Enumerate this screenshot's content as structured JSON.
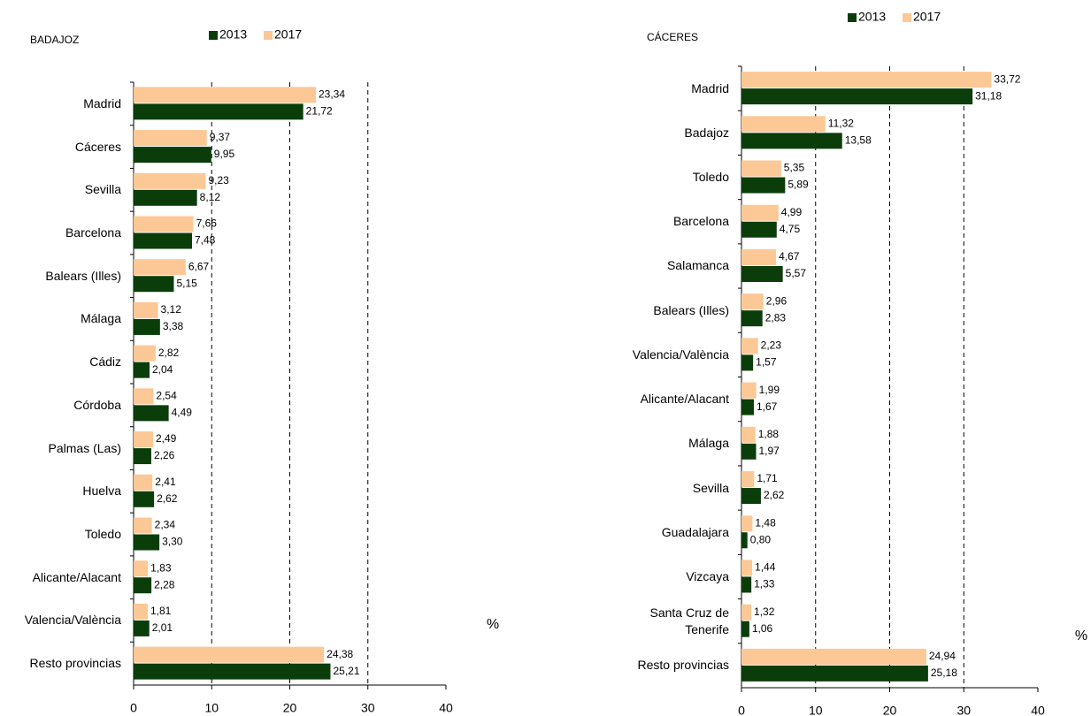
{
  "chart_data": [
    {
      "type": "bar",
      "orientation": "horizontal",
      "title": "BADAJOZ",
      "axis_label": "%",
      "grid": true,
      "categories": [
        "Madrid",
        "Cáceres",
        "Sevilla",
        "Barcelona",
        "Balears (Illes)",
        "Málaga",
        "Cádiz",
        "Córdoba",
        "Palmas (Las)",
        "Huelva",
        "Toledo",
        "Alicante/Alacant",
        "Valencia/València",
        "Resto provincias"
      ],
      "series": [
        {
          "name": "2013",
          "color": "#0b3d0b",
          "values": [
            21.72,
            9.95,
            8.12,
            7.48,
            5.15,
            3.38,
            2.04,
            4.49,
            2.26,
            2.62,
            3.3,
            2.28,
            2.01,
            25.21
          ],
          "value_labels": [
            "21,72",
            "9,95",
            "8,12",
            "7,48",
            "5,15",
            "3,38",
            "2,04",
            "4,49",
            "2,26",
            "2,62",
            "3,30",
            "2,28",
            "2,01",
            "25,21"
          ]
        },
        {
          "name": "2017",
          "color": "#fcc896",
          "values": [
            23.34,
            9.37,
            9.23,
            7.66,
            6.67,
            3.12,
            2.82,
            2.54,
            2.49,
            2.41,
            2.34,
            1.83,
            1.81,
            24.38
          ],
          "value_labels": [
            "23,34",
            "9,37",
            "9,23",
            "7,66",
            "6,67",
            "3,12",
            "2,82",
            "2,54",
            "2,49",
            "2,41",
            "2,34",
            "1,83",
            "1,81",
            "24,38"
          ]
        }
      ],
      "xlim": [
        0,
        40
      ],
      "xticks": [
        0,
        10,
        20,
        30,
        40
      ]
    },
    {
      "type": "bar",
      "orientation": "horizontal",
      "title": "CÁCERES",
      "axis_label": "%",
      "grid": true,
      "categories": [
        "Madrid",
        "Badajoz",
        "Toledo",
        "Barcelona",
        "Salamanca",
        "Balears (Illes)",
        "Valencia/València",
        "Alicante/Alacant",
        "Málaga",
        "Sevilla",
        "Guadalajara",
        "Vizcaya",
        "Santa Cruz de Tenerife",
        "Resto provincias"
      ],
      "series": [
        {
          "name": "2013",
          "color": "#0b3d0b",
          "values": [
            31.18,
            13.58,
            5.89,
            4.75,
            5.57,
            2.83,
            1.57,
            1.67,
            1.97,
            2.62,
            0.8,
            1.33,
            1.06,
            25.18
          ],
          "value_labels": [
            "31,18",
            "13,58",
            "5,89",
            "4,75",
            "5,57",
            "2,83",
            "1,57",
            "1,67",
            "1,97",
            "2,62",
            "0,80",
            "1,33",
            "1,06",
            "25,18"
          ]
        },
        {
          "name": "2017",
          "color": "#fcc896",
          "values": [
            33.72,
            11.32,
            5.35,
            4.99,
            4.67,
            2.96,
            2.23,
            1.99,
            1.88,
            1.71,
            1.48,
            1.44,
            1.32,
            24.94
          ],
          "value_labels": [
            "33,72",
            "11,32",
            "5,35",
            "4,99",
            "4,67",
            "2,96",
            "2,23",
            "1,99",
            "1,88",
            "1,71",
            "1,48",
            "1,44",
            "1,32",
            "24,94"
          ]
        }
      ],
      "xlim": [
        0,
        40
      ],
      "xticks": [
        0,
        10,
        20,
        30,
        40
      ]
    }
  ]
}
